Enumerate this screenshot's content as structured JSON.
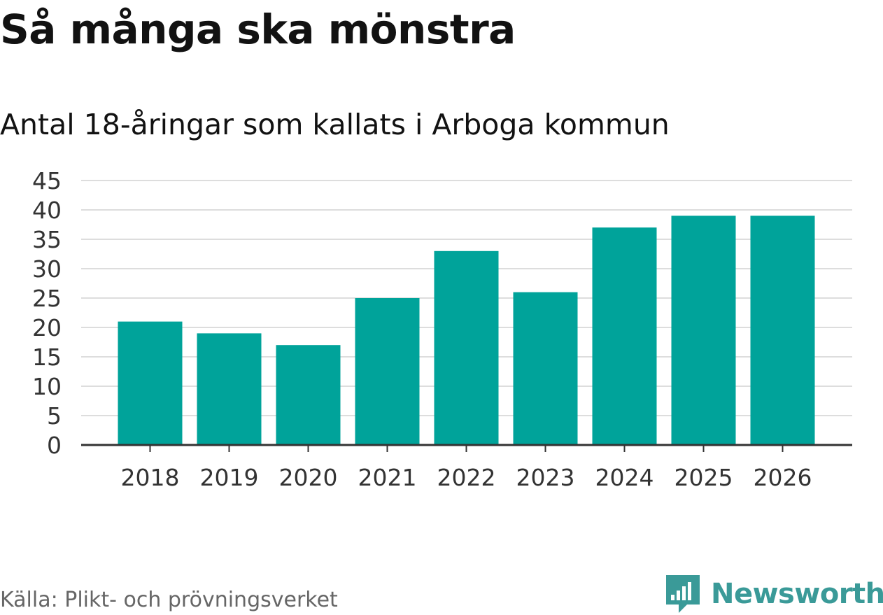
{
  "title": "Så många ska mönstra",
  "subtitle": "Antal 18-åringar som kallats i Arboga kommun",
  "source": "Källa: Plikt- och prövningsverket",
  "brand": "Newsworthy",
  "colors": {
    "bar": "#00a39a",
    "grid": "#dddddd",
    "axis": "#333333",
    "brand": "#3a9a98"
  },
  "chart_data": {
    "type": "bar",
    "title": "Så många ska mönstra",
    "subtitle": "Antal 18-åringar som kallats i Arboga kommun",
    "xlabel": "",
    "ylabel": "",
    "categories": [
      "2018",
      "2019",
      "2020",
      "2021",
      "2022",
      "2023",
      "2024",
      "2025",
      "2026"
    ],
    "values": [
      21,
      19,
      17,
      25,
      33,
      26,
      37,
      39,
      39
    ],
    "ylim": [
      0,
      45
    ],
    "yticks": [
      0,
      5,
      10,
      15,
      20,
      25,
      30,
      35,
      40,
      45
    ],
    "grid": true,
    "legend": "none"
  }
}
